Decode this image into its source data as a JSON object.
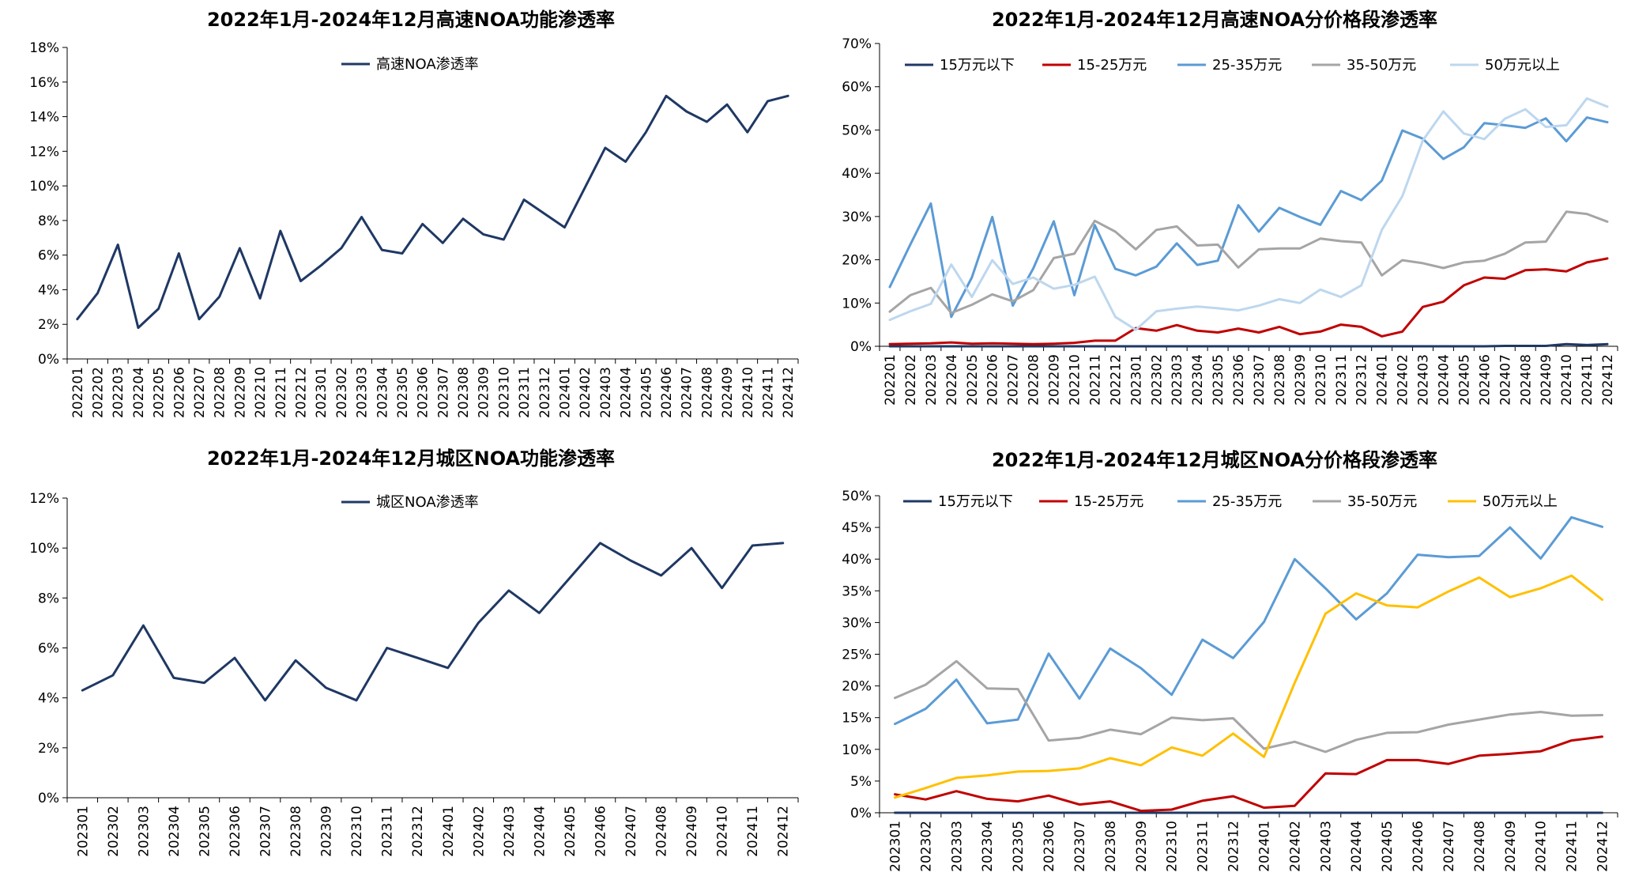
{
  "chart_data": [
    {
      "type": "line",
      "title": "2022年1月-2024年12月高速NOA功能渗透率",
      "ylim": [
        0,
        18
      ],
      "ytick_step": 2,
      "y_unit_suffix": "%",
      "legend_position": "top-center",
      "grid": false,
      "x": [
        "202201",
        "202202",
        "202203",
        "202204",
        "202205",
        "202206",
        "202207",
        "202208",
        "202209",
        "202210",
        "202211",
        "202212",
        "202301",
        "202302",
        "202303",
        "202304",
        "202305",
        "202306",
        "202307",
        "202308",
        "202309",
        "202310",
        "202311",
        "202312",
        "202401",
        "202402",
        "202403",
        "202404",
        "202405",
        "202406",
        "202407",
        "202408",
        "202409",
        "202410",
        "202411",
        "202412"
      ],
      "series": [
        {
          "name": "高速NOA渗透率",
          "color": "#1f3864",
          "values": [
            2.3,
            3.8,
            6.6,
            1.8,
            2.9,
            6.1,
            2.3,
            3.6,
            6.4,
            3.5,
            7.4,
            4.5,
            5.4,
            6.4,
            8.2,
            6.3,
            6.1,
            7.8,
            6.7,
            8.1,
            7.2,
            6.9,
            9.2,
            8.4,
            7.6,
            9.9,
            12.2,
            11.4,
            13.1,
            15.2,
            14.3,
            13.7,
            14.7,
            13.1,
            14.9,
            15.2
          ]
        }
      ]
    },
    {
      "type": "line",
      "title": "2022年1月-2024年12月高速NOA分价格段渗透率",
      "ylim": [
        0,
        70
      ],
      "ytick_step": 10,
      "y_unit_suffix": "%",
      "legend_position": "top",
      "grid": false,
      "x": [
        "202201",
        "202202",
        "202203",
        "202204",
        "202205",
        "202206",
        "202207",
        "202208",
        "202209",
        "202210",
        "202211",
        "202212",
        "202301",
        "202302",
        "202303",
        "202304",
        "202305",
        "202306",
        "202307",
        "202308",
        "202309",
        "202310",
        "202311",
        "202312",
        "202401",
        "202402",
        "202403",
        "202404",
        "202405",
        "202406",
        "202407",
        "202408",
        "202409",
        "202410",
        "202411",
        "202412"
      ],
      "series": [
        {
          "name": "15万元以下",
          "color": "#1f3864",
          "values": [
            0,
            0,
            0,
            0,
            0,
            0,
            0,
            0,
            0,
            0,
            0,
            0,
            0,
            0,
            0,
            0,
            0,
            0,
            0,
            0,
            0,
            0,
            0,
            0,
            0,
            0,
            0,
            0,
            0,
            0,
            0.1,
            0.1,
            0.1,
            0.5,
            0.3,
            0.5
          ]
        },
        {
          "name": "15-25万元",
          "color": "#c00000",
          "values": [
            0.5,
            0.6,
            0.7,
            0.9,
            0.6,
            0.7,
            0.6,
            0.5,
            0.6,
            0.8,
            1.3,
            1.3,
            4.2,
            3.6,
            4.9,
            3.6,
            3.2,
            4.1,
            3.2,
            4.5,
            2.8,
            3.4,
            5.0,
            4.5,
            2.3,
            3.4,
            9.1,
            10.3,
            14.1,
            15.9,
            15.6,
            17.6,
            17.8,
            17.3,
            19.4,
            20.3
          ]
        },
        {
          "name": "25-35万元",
          "color": "#5b9bd5",
          "values": [
            13.7,
            23.5,
            33.0,
            6.8,
            15.9,
            29.9,
            9.4,
            18.0,
            28.9,
            11.8,
            28.0,
            17.9,
            16.4,
            18.4,
            23.8,
            18.8,
            19.8,
            32.6,
            26.5,
            32.0,
            29.9,
            28.1,
            35.9,
            33.8,
            38.3,
            49.9,
            48.0,
            43.3,
            46.0,
            51.6,
            51.1,
            50.5,
            52.7,
            47.4,
            52.9,
            51.8
          ]
        },
        {
          "name": "35-50万元",
          "color": "#a5a5a5",
          "values": [
            8.0,
            11.8,
            13.5,
            7.7,
            9.6,
            12.0,
            10.4,
            13.0,
            20.4,
            21.4,
            29.0,
            26.5,
            22.4,
            26.9,
            27.7,
            23.3,
            23.5,
            18.2,
            22.4,
            22.6,
            22.6,
            24.9,
            24.3,
            24.0,
            16.4,
            19.9,
            19.2,
            18.1,
            19.4,
            19.8,
            21.4,
            24.0,
            24.2,
            31.1,
            30.6,
            28.8
          ]
        },
        {
          "name": "50万元以上",
          "color": "#bdd7ee",
          "values": [
            6.1,
            8.1,
            9.8,
            18.9,
            11.4,
            19.9,
            14.4,
            15.9,
            13.3,
            14.2,
            16.1,
            6.8,
            3.8,
            8.1,
            8.7,
            9.2,
            8.8,
            8.3,
            9.4,
            10.9,
            10.0,
            13.1,
            11.4,
            14.1,
            26.9,
            34.7,
            47.6,
            54.3,
            49.2,
            47.9,
            52.6,
            54.8,
            50.7,
            51.1,
            57.3,
            55.4
          ]
        }
      ]
    },
    {
      "type": "line",
      "title": "2022年1月-2024年12月城区NOA功能渗透率",
      "ylim": [
        0,
        12
      ],
      "ytick_step": 2,
      "y_unit_suffix": "%",
      "legend_position": "top-center",
      "grid": false,
      "x": [
        "202301",
        "202302",
        "202303",
        "202304",
        "202305",
        "202306",
        "202307",
        "202308",
        "202309",
        "202310",
        "202311",
        "202312",
        "202401",
        "202402",
        "202403",
        "202404",
        "202405",
        "202406",
        "202407",
        "202408",
        "202409",
        "202410",
        "202411",
        "202412"
      ],
      "series": [
        {
          "name": "城区NOA渗透率",
          "color": "#1f3864",
          "values": [
            4.3,
            4.9,
            6.9,
            4.8,
            4.6,
            5.6,
            3.9,
            5.5,
            4.4,
            3.9,
            6.0,
            5.6,
            5.2,
            7.0,
            8.3,
            7.4,
            8.8,
            10.2,
            9.5,
            8.9,
            10.0,
            8.4,
            10.1,
            10.2
          ]
        }
      ]
    },
    {
      "type": "line",
      "title": "2022年1月-2024年12月城区NOA分价格段渗透率",
      "ylim": [
        0,
        50
      ],
      "ytick_step": 5,
      "y_unit_suffix": "%",
      "legend_position": "top",
      "grid": false,
      "x": [
        "202301",
        "202302",
        "202303",
        "202304",
        "202305",
        "202306",
        "202307",
        "202308",
        "202309",
        "202310",
        "202311",
        "202312",
        "202401",
        "202402",
        "202403",
        "202404",
        "202405",
        "202406",
        "202407",
        "202408",
        "202409",
        "202410",
        "202411",
        "202412"
      ],
      "series": [
        {
          "name": "15万元以下",
          "color": "#1f3864",
          "values": [
            0,
            0,
            0,
            0,
            0,
            0,
            0,
            0,
            0,
            0,
            0,
            0,
            0,
            0,
            0,
            0,
            0,
            0,
            0,
            0,
            0,
            0,
            0,
            0
          ]
        },
        {
          "name": "15-25万元",
          "color": "#c00000",
          "values": [
            2.9,
            2.1,
            3.4,
            2.2,
            1.8,
            2.7,
            1.3,
            1.8,
            0.3,
            0.5,
            1.9,
            2.6,
            0.8,
            1.1,
            6.2,
            6.1,
            8.3,
            8.3,
            7.7,
            9.0,
            9.3,
            9.7,
            11.4,
            12.0
          ]
        },
        {
          "name": "25-35万元",
          "color": "#5b9bd5",
          "values": [
            14.0,
            16.4,
            21.0,
            14.1,
            14.7,
            25.1,
            18.0,
            25.9,
            22.8,
            18.6,
            27.3,
            24.4,
            30.1,
            40.0,
            35.4,
            30.5,
            34.6,
            40.7,
            40.3,
            40.5,
            45.0,
            40.1,
            46.6,
            45.1
          ]
        },
        {
          "name": "35-50万元",
          "color": "#a5a5a5",
          "values": [
            18.1,
            20.2,
            23.9,
            19.6,
            19.5,
            11.4,
            11.8,
            13.1,
            12.4,
            15.0,
            14.6,
            14.9,
            10.1,
            11.2,
            9.6,
            11.5,
            12.6,
            12.7,
            13.9,
            14.7,
            15.5,
            15.9,
            15.3,
            15.4
          ]
        },
        {
          "name": "50万元以上",
          "color": "#ffc000",
          "values": [
            2.4,
            3.9,
            5.5,
            5.9,
            6.5,
            6.6,
            7.0,
            8.6,
            7.5,
            10.3,
            9.0,
            12.5,
            8.8,
            20.5,
            31.4,
            34.6,
            32.7,
            32.4,
            34.9,
            37.1,
            34.0,
            35.4,
            37.4,
            33.6
          ]
        }
      ]
    }
  ]
}
